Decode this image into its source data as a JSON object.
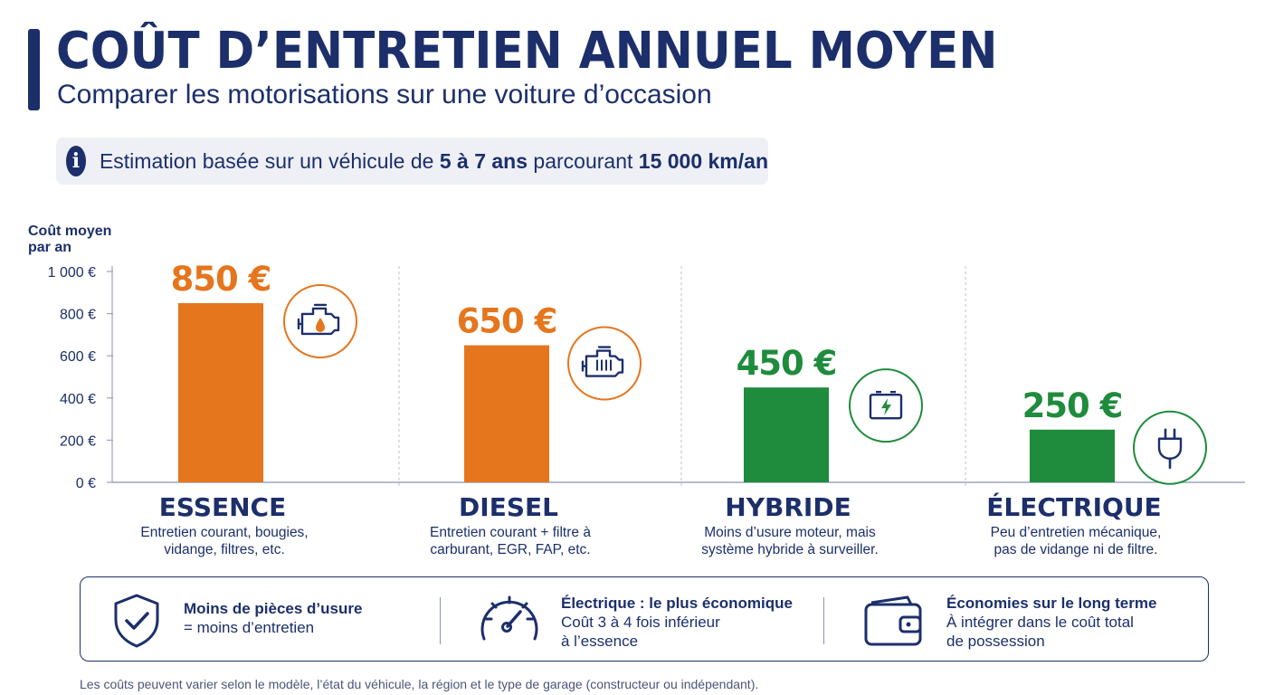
{
  "header": {
    "title": "COÛT D’ENTRETIEN ANNUEL MOYEN",
    "subtitle": "Comparer les motorisations sur une voiture d’occasion"
  },
  "info": {
    "text_1": "Estimation basée sur un véhicule de ",
    "bold_1": "5 à 7 ans",
    "text_2": " parcourant ",
    "bold_2": "15 000 km/an",
    "icon": "info-icon"
  },
  "chart_data": {
    "type": "bar",
    "ylabel": "Coût moyen par an",
    "ylim": [
      0,
      1000
    ],
    "y_ticks": [
      {
        "value": 0,
        "label": "0 €"
      },
      {
        "value": 200,
        "label": "200 €"
      },
      {
        "value": 400,
        "label": "400 €"
      },
      {
        "value": 600,
        "label": "600 €"
      },
      {
        "value": 800,
        "label": "800 €"
      },
      {
        "value": 1000,
        "label": "1 000 €"
      }
    ],
    "grid": false,
    "categories": [
      "ESSENCE",
      "DIESEL",
      "HYBRIDE",
      "ÉLECTRIQUE"
    ],
    "values": [
      850,
      650,
      450,
      250
    ],
    "value_labels": [
      "850 €",
      "650 €",
      "450 €",
      "250 €"
    ],
    "descriptions": [
      [
        "Entretien courant, bougies,",
        "vidange, filtres, etc."
      ],
      [
        "Entretien courant + filtre à",
        "carburant, EGR, FAP, etc."
      ],
      [
        "Moins d’usure moteur, mais",
        "système hybride à surveiller."
      ],
      [
        "Peu d’entretien mécanique,",
        "pas de vidange ni de filtre."
      ]
    ],
    "colors": [
      "#e5761e",
      "#e5761e",
      "#1f8b3c",
      "#1f8b3c"
    ],
    "icons": [
      "engine-oil-icon",
      "diesel-engine-icon",
      "battery-icon",
      "plug-icon"
    ]
  },
  "footer": {
    "items": [
      {
        "title": "Moins de pièces d’usure",
        "lines": [
          "= moins d’entretien"
        ],
        "icon": "shield-check-icon"
      },
      {
        "title": "Électrique : le plus économique",
        "lines": [
          "Coût 3 à 4 fois inférieur",
          "à l’essence"
        ],
        "icon": "gauge-icon"
      },
      {
        "title": "Économies sur le long terme",
        "lines": [
          "À intégrer dans le coût total",
          "de possession"
        ],
        "icon": "wallet-icon"
      }
    ]
  },
  "note": "Les coûts peuvent varier selon le modèle, l’état du véhicule, la région et le type de garage (constructeur ou indépendant)."
}
